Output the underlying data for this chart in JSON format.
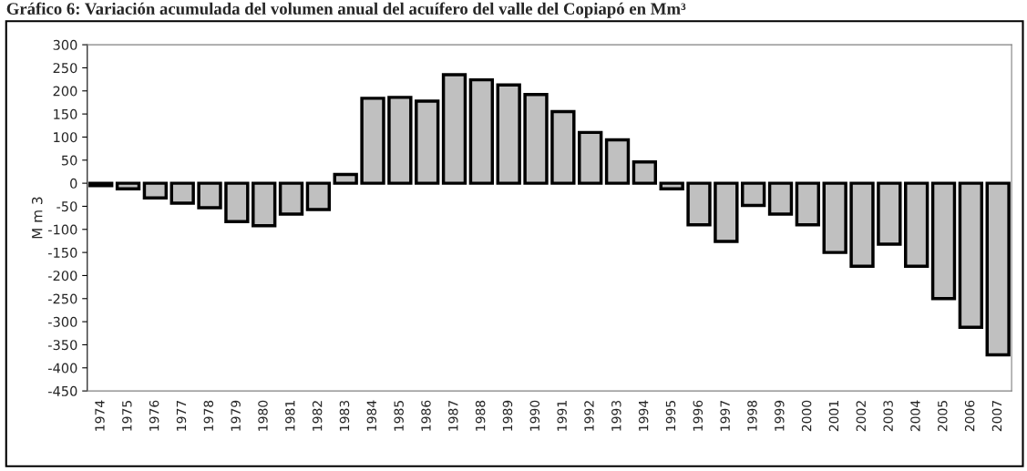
{
  "chart_data": {
    "type": "bar",
    "title": "Gráfico 6: Variación acumulada del volumen anual del acuífero del valle del Copiapó en Mm³",
    "ylabel": "M m 3",
    "categories": [
      "1974",
      "1975",
      "1976",
      "1977",
      "1978",
      "1979",
      "1980",
      "1981",
      "1982",
      "1983",
      "1984",
      "1985",
      "1986",
      "1987",
      "1988",
      "1989",
      "1990",
      "1991",
      "1992",
      "1993",
      "1994",
      "1995",
      "1996",
      "1997",
      "1998",
      "1999",
      "2000",
      "2001",
      "2002",
      "2003",
      "2004",
      "2005",
      "2006",
      "2007"
    ],
    "values": [
      -5,
      -12,
      -32,
      -43,
      -53,
      -83,
      -92,
      -67,
      -57,
      19,
      184,
      186,
      178,
      235,
      224,
      213,
      192,
      155,
      110,
      94,
      46,
      -12,
      -90,
      -126,
      -48,
      -67,
      -90,
      -150,
      -180,
      -132,
      -180,
      -250,
      -312,
      -372
    ],
    "color": "#c0c0c0",
    "ylim": [
      -450,
      300
    ],
    "yticks": [
      -450,
      -400,
      -350,
      -300,
      -250,
      -200,
      -150,
      -100,
      -50,
      0,
      50,
      100,
      150,
      200,
      250,
      300
    ],
    "grid": false
  }
}
